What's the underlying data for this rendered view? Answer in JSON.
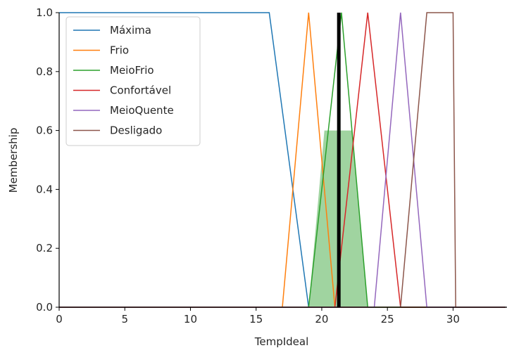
{
  "chart_data": {
    "type": "line",
    "xlabel": "TempIdeal",
    "ylabel": "Membership",
    "xlim": [
      0,
      34
    ],
    "ylim": [
      0,
      1.0
    ],
    "xticks": [
      0,
      5,
      10,
      15,
      20,
      25,
      30
    ],
    "yticks": [
      0.0,
      0.2,
      0.4,
      0.6,
      0.8,
      1.0
    ],
    "xtick_labels": [
      "0",
      "5",
      "10",
      "15",
      "20",
      "25",
      "30"
    ],
    "ytick_labels": [
      "0.0",
      "0.2",
      "0.4",
      "0.6",
      "0.8",
      "1.0"
    ],
    "legend_position": "top-left",
    "series": [
      {
        "name": "Máxima",
        "color": "#1f77b4",
        "x": [
          0,
          16,
          19,
          34
        ],
        "y": [
          1,
          1,
          0,
          0
        ]
      },
      {
        "name": "Frio",
        "color": "#ff7f0e",
        "x": [
          0,
          17,
          19,
          21,
          34
        ],
        "y": [
          0,
          0,
          1,
          0,
          0
        ]
      },
      {
        "name": "MeioFrio",
        "color": "#2ca02c",
        "x": [
          0,
          19,
          21.5,
          23.5,
          34
        ],
        "y": [
          0,
          0,
          1,
          0,
          0
        ]
      },
      {
        "name": "Confortável",
        "color": "#d62728",
        "x": [
          0,
          21,
          23.5,
          26,
          34
        ],
        "y": [
          0,
          0,
          1,
          0,
          0
        ]
      },
      {
        "name": "MeioQuente",
        "color": "#9467bd",
        "x": [
          0,
          24,
          26,
          28,
          34
        ],
        "y": [
          0,
          0,
          1,
          0,
          0
        ]
      },
      {
        "name": "Desligado",
        "color": "#8c564b",
        "x": [
          0,
          26,
          28,
          30,
          30.2,
          34
        ],
        "y": [
          0,
          0,
          1,
          1,
          0,
          0
        ]
      }
    ],
    "activation": {
      "color": "#2ca02c",
      "x": [
        19,
        20.2,
        22.3,
        23.5
      ],
      "y": [
        0,
        0.6,
        0.6,
        0
      ]
    },
    "crisp_output": {
      "x": 21.3,
      "color": "#000000"
    }
  }
}
